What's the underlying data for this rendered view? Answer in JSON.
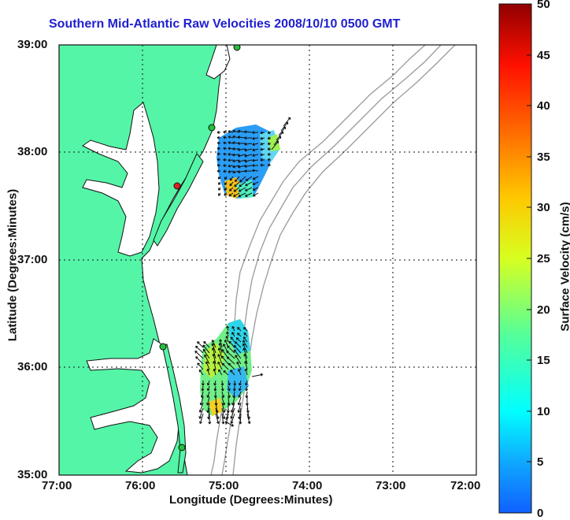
{
  "title": "Southern Mid-Atlantic Raw Velocities 2008/10/10 0500 GMT",
  "xlabel": "Longitude (Degrees:Minutes)",
  "ylabel": "Latitude (Degrees:Minutes)",
  "colorbar_label": "Surface Velocity (cm/s)",
  "x_ticks": [
    "77:00",
    "76:00",
    "75:00",
    "74:00",
    "73:00",
    "72:00"
  ],
  "y_ticks": [
    "39:00",
    "38:00",
    "37:00",
    "36:00",
    "35:00"
  ],
  "colorbar_ticks": [
    "50",
    "45",
    "40",
    "35",
    "30",
    "25",
    "20",
    "15",
    "10",
    "5",
    "0"
  ],
  "colors": {
    "land": "#55f5a8",
    "coast": "#111111",
    "bathymetry": "#9a9a9a",
    "title": "#1f1fd0",
    "station_green": "#23c23a",
    "station_red": "#e02020"
  },
  "chart_data": {
    "type": "vector-field-map",
    "x_range_deg_west": [
      77,
      72
    ],
    "y_range_deg_north": [
      35,
      39
    ],
    "colorbar_range_cm_s": [
      0,
      50
    ],
    "grid": true,
    "colorbar": "right",
    "stations": [
      {
        "lon": 74.87,
        "lat": 38.98,
        "color": "green"
      },
      {
        "lon": 75.12,
        "lat": 38.22,
        "color": "green"
      },
      {
        "lon": 75.53,
        "lat": 37.68,
        "color": "red"
      },
      {
        "lon": 75.7,
        "lat": 36.18,
        "color": "green"
      },
      {
        "lon": 75.52,
        "lat": 35.25,
        "color": "green"
      }
    ],
    "regions": [
      {
        "name": "north-patch",
        "lon_range": [
          75.05,
          74.4
        ],
        "lat_range": [
          37.5,
          38.22
        ],
        "typical_speed_cm_s": 10
      },
      {
        "name": "south-patch",
        "lon_range": [
          75.3,
          74.65
        ],
        "lat_range": [
          35.55,
          36.4
        ],
        "typical_speed_cm_s": 18
      }
    ]
  }
}
